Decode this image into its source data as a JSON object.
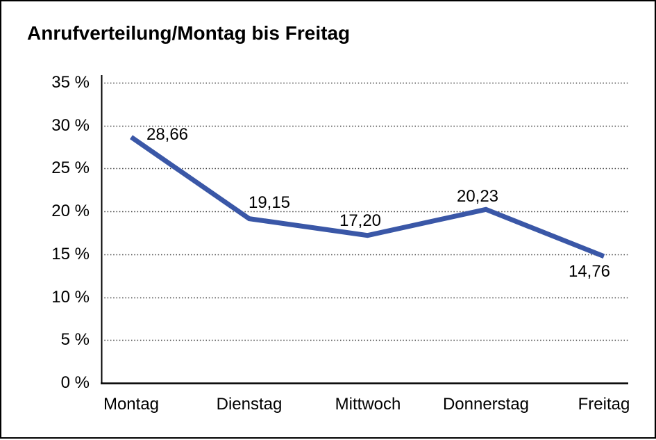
{
  "chart": {
    "title": "Anrufverteilung/Montag bis Freitag"
  },
  "chart_data": {
    "type": "line",
    "title": "Anrufverteilung/Montag bis Freitag",
    "categories": [
      "Montag",
      "Dienstag",
      "Mittwoch",
      "Donnerstag",
      "Freitag"
    ],
    "values": [
      28.66,
      19.15,
      17.2,
      20.23,
      14.76
    ],
    "value_labels": [
      "28,66",
      "19,15",
      "17,20",
      "20,23",
      "14,76"
    ],
    "y_axis": {
      "unit": "%",
      "min": 0,
      "max": 35,
      "tick_step": 5,
      "tick_values": [
        35,
        30,
        25,
        20,
        15,
        10,
        5,
        0
      ],
      "tick_labels": [
        "35 %",
        "30 %",
        "25 %",
        "20 %",
        "15 %",
        "10 %",
        "5 %",
        "0 %"
      ]
    },
    "grid": "dotted-horizontal",
    "legend": "none",
    "line_color": "#3A57A7",
    "axis_color": "#000000",
    "gridline_color": "#3c3c3c",
    "frame_border_color": "#000000"
  }
}
